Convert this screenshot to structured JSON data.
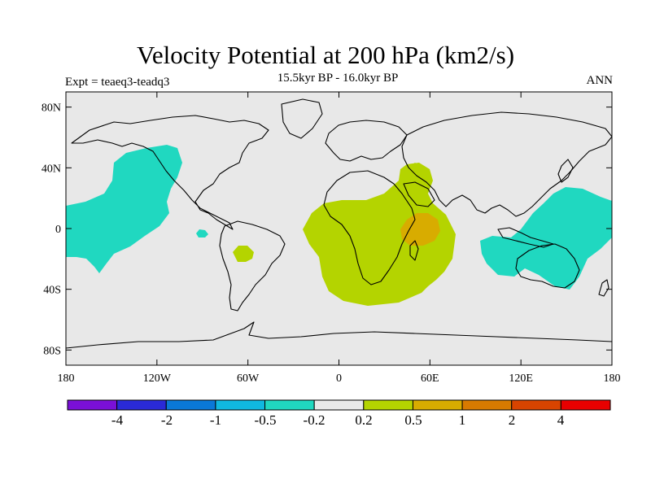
{
  "map": {
    "title": "Velocity Potential at 200 hPa (km2/s)",
    "subtitle": "15.5kyr BP - 16.0kyr BP",
    "left_label": "Expt = teaeq3-teadq3",
    "right_label": "ANN",
    "projection": "cylindrical equidistant",
    "background_color": "#e8e8e8",
    "lat_ticks": [
      "80N",
      "40N",
      "0",
      "40S",
      "80S"
    ],
    "lon_ticks": [
      "180",
      "120W",
      "60W",
      "0",
      "60E",
      "120E",
      "180"
    ]
  },
  "colorbar": {
    "colors": [
      "#7a10d8",
      "#2a2ad8",
      "#0a78d8",
      "#10b8e0",
      "#20d8c0",
      "#e8e8e8",
      "#b4d400",
      "#d8ac00",
      "#d87a00",
      "#d84400",
      "#e80000"
    ],
    "labels": [
      "-4",
      "-2",
      "-1",
      "-0.5",
      "-0.2",
      "0.2",
      "0.5",
      "1",
      "2",
      "4"
    ]
  },
  "regions": [
    {
      "name": "north-pacific-negative",
      "fill": "#20d8c0"
    },
    {
      "name": "east-pacific-negative-small",
      "fill": "#20d8c0"
    },
    {
      "name": "maritime-continent-negative",
      "fill": "#20d8c0"
    },
    {
      "name": "africa-positive",
      "fill": "#b4d400"
    },
    {
      "name": "arabia-positive",
      "fill": "#b4d400"
    },
    {
      "name": "south-america-positive",
      "fill": "#b4d400"
    },
    {
      "name": "east-africa-positive-max",
      "fill": "#d8ac00"
    }
  ]
}
